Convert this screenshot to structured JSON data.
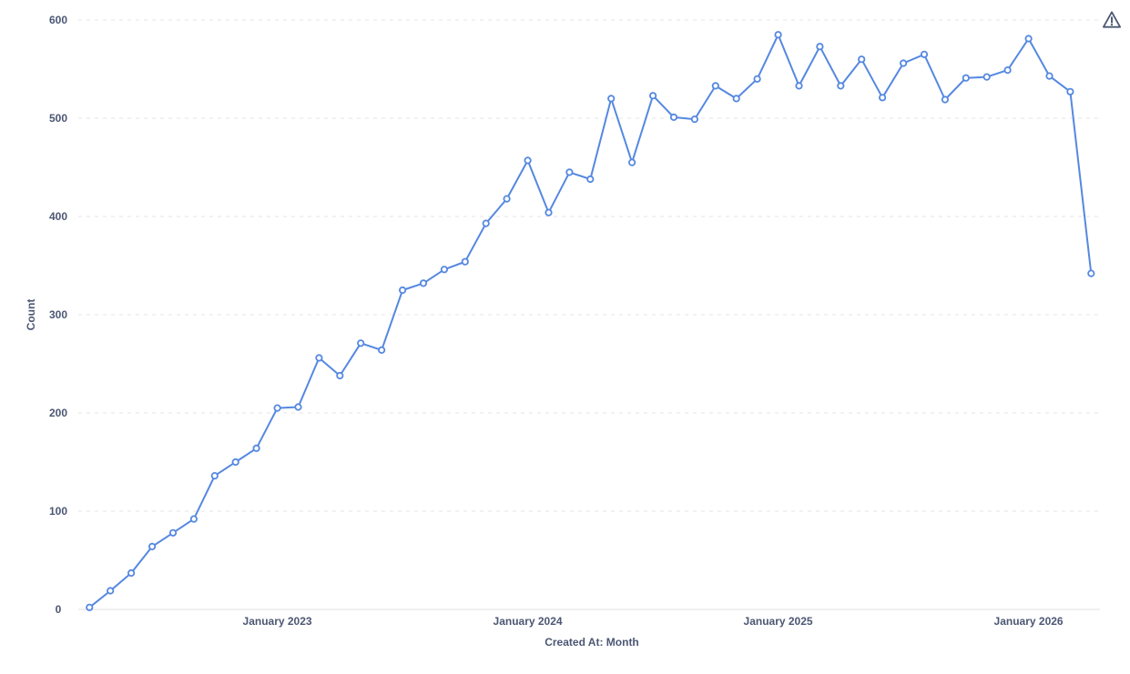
{
  "chart_data": {
    "type": "line",
    "title": "",
    "xlabel": "Created At: Month",
    "ylabel": "Count",
    "ylim": [
      0,
      600
    ],
    "y_ticks": [
      0,
      100,
      200,
      300,
      400,
      500,
      600
    ],
    "x_tick_marks": [
      {
        "label": "January 2023",
        "index": 9
      },
      {
        "label": "January 2024",
        "index": 21
      },
      {
        "label": "January 2025",
        "index": 33
      },
      {
        "label": "January 2026",
        "index": 45
      }
    ],
    "grid": "horizontal-dashed",
    "legend_position": "none",
    "series_name": "Count",
    "x": [
      "April 2022",
      "May 2022",
      "June 2022",
      "July 2022",
      "August 2022",
      "September 2022",
      "October 2022",
      "November 2022",
      "December 2022",
      "January 2023",
      "February 2023",
      "March 2023",
      "April 2023",
      "May 2023",
      "June 2023",
      "July 2023",
      "August 2023",
      "September 2023",
      "October 2023",
      "November 2023",
      "December 2023",
      "January 2024",
      "February 2024",
      "March 2024",
      "April 2024",
      "May 2024",
      "June 2024",
      "July 2024",
      "August 2024",
      "September 2024",
      "October 2024",
      "November 2024",
      "December 2024",
      "January 2025",
      "February 2025",
      "March 2025",
      "April 2025",
      "May 2025",
      "June 2025",
      "July 2025",
      "August 2025",
      "September 2025",
      "October 2025",
      "November 2025",
      "December 2025",
      "January 2026",
      "February 2026",
      "March 2026",
      "April 2026"
    ],
    "values": [
      2,
      19,
      37,
      64,
      78,
      92,
      136,
      150,
      164,
      205,
      206,
      256,
      238,
      271,
      264,
      325,
      332,
      346,
      354,
      393,
      418,
      457,
      404,
      445,
      438,
      520,
      455,
      523,
      501,
      499,
      533,
      520,
      540,
      585,
      533,
      573,
      533,
      560,
      521,
      556,
      565,
      519,
      541,
      542,
      549,
      581,
      543,
      527,
      342
    ],
    "colors": {
      "line": "#5588E0",
      "marker_fill": "#ffffff",
      "gridline": "#e6e6e6",
      "baseline": "#e0e0e0",
      "text": "#4C5773"
    }
  },
  "icons": {
    "warning": "warning-triangle"
  }
}
